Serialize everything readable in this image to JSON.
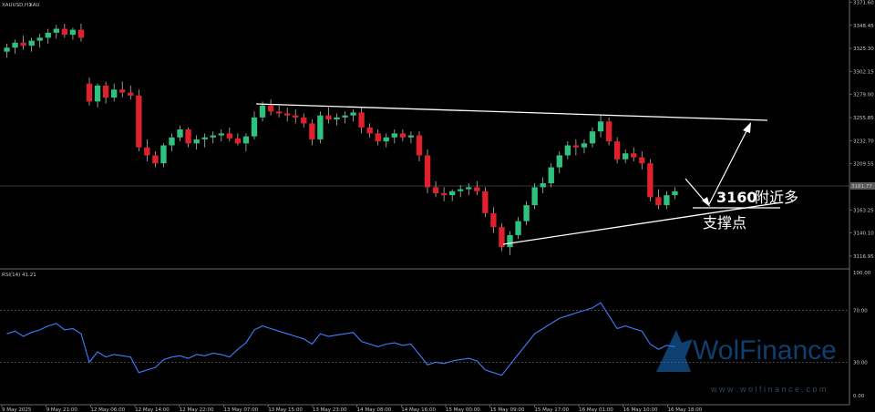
{
  "header": {
    "symbol": "XAUUSD,H1",
    "symbol_short": "XAU"
  },
  "annotation": {
    "line1_number": "3160",
    "line1_text": "附近多",
    "line2": "支撑点"
  },
  "watermark": {
    "brand": "WolFinance",
    "url": "w w w . w o l f i n a n c e . c o m"
  },
  "indicator": {
    "label": "RSI(14) 41.21",
    "levels": [
      70,
      30
    ],
    "scale_top": "100.00",
    "scale_bottom": "0.00"
  },
  "current_price": "3181.77",
  "colors": {
    "bull": "#2ec27e",
    "bear": "#e0202a",
    "rsi": "#3d7fff",
    "trendline": "#ffffff",
    "background": "#000000"
  },
  "chart_data": {
    "type": "candlestick",
    "title": "XAUUSD,H1",
    "ylim": [
      3105,
      3372
    ],
    "y_ticks": [
      "3371.60",
      "3348.45",
      "3325.30",
      "3302.15",
      "3279.00",
      "3255.85",
      "3232.70",
      "3209.55",
      "3186.40",
      "3163.25",
      "3140.10",
      "3116.95"
    ],
    "x_ticks": [
      "9 May 2025",
      "9 May 21:00",
      "12 May 06:00",
      "12 May 14:00",
      "12 May 22:00",
      "13 May 07:00",
      "13 May 15:00",
      "13 May 23:00",
      "14 May 08:00",
      "14 May 16:00",
      "15 May 00:00",
      "15 May 09:00",
      "15 May 17:00",
      "16 May 01:00",
      "16 May 10:00",
      "16 May 18:00"
    ],
    "ohlc": [
      [
        3322,
        3330,
        3316,
        3326
      ],
      [
        3326,
        3334,
        3320,
        3331
      ],
      [
        3331,
        3338,
        3324,
        3328
      ],
      [
        3328,
        3336,
        3322,
        3333
      ],
      [
        3333,
        3340,
        3326,
        3336
      ],
      [
        3336,
        3345,
        3330,
        3341
      ],
      [
        3341,
        3349,
        3335,
        3345
      ],
      [
        3345,
        3350,
        3336,
        3339
      ],
      [
        3339,
        3346,
        3334,
        3344
      ],
      [
        3344,
        3350,
        3332,
        3336
      ],
      [
        3290,
        3296,
        3268,
        3272
      ],
      [
        3272,
        3290,
        3266,
        3288
      ],
      [
        3288,
        3292,
        3270,
        3276
      ],
      [
        3276,
        3290,
        3272,
        3284
      ],
      [
        3284,
        3292,
        3276,
        3281
      ],
      [
        3281,
        3288,
        3274,
        3278
      ],
      [
        3278,
        3284,
        3222,
        3226
      ],
      [
        3226,
        3234,
        3212,
        3218
      ],
      [
        3218,
        3222,
        3206,
        3210
      ],
      [
        3210,
        3230,
        3206,
        3228
      ],
      [
        3228,
        3240,
        3222,
        3236
      ],
      [
        3236,
        3248,
        3232,
        3244
      ],
      [
        3244,
        3246,
        3226,
        3230
      ],
      [
        3230,
        3238,
        3224,
        3234
      ],
      [
        3234,
        3240,
        3226,
        3236
      ],
      [
        3236,
        3242,
        3230,
        3238
      ],
      [
        3238,
        3244,
        3232,
        3240
      ],
      [
        3240,
        3246,
        3232,
        3235
      ],
      [
        3235,
        3240,
        3228,
        3230
      ],
      [
        3230,
        3240,
        3222,
        3237
      ],
      [
        3237,
        3262,
        3234,
        3256
      ],
      [
        3256,
        3272,
        3252,
        3268
      ],
      [
        3268,
        3274,
        3258,
        3262
      ],
      [
        3262,
        3268,
        3256,
        3260
      ],
      [
        3260,
        3266,
        3252,
        3258
      ],
      [
        3258,
        3264,
        3250,
        3256
      ],
      [
        3256,
        3260,
        3246,
        3250
      ],
      [
        3250,
        3254,
        3228,
        3234
      ],
      [
        3234,
        3262,
        3230,
        3258
      ],
      [
        3258,
        3266,
        3250,
        3254
      ],
      [
        3254,
        3260,
        3248,
        3256
      ],
      [
        3256,
        3262,
        3250,
        3258
      ],
      [
        3258,
        3264,
        3252,
        3261
      ],
      [
        3261,
        3266,
        3240,
        3246
      ],
      [
        3246,
        3250,
        3236,
        3240
      ],
      [
        3240,
        3244,
        3228,
        3232
      ],
      [
        3232,
        3240,
        3226,
        3236
      ],
      [
        3236,
        3244,
        3230,
        3240
      ],
      [
        3240,
        3244,
        3232,
        3236
      ],
      [
        3236,
        3242,
        3230,
        3238
      ],
      [
        3238,
        3242,
        3212,
        3218
      ],
      [
        3218,
        3224,
        3180,
        3186
      ],
      [
        3186,
        3192,
        3176,
        3180
      ],
      [
        3180,
        3186,
        3172,
        3178
      ],
      [
        3178,
        3184,
        3172,
        3182
      ],
      [
        3182,
        3188,
        3176,
        3184
      ],
      [
        3184,
        3190,
        3178,
        3186
      ],
      [
        3186,
        3192,
        3178,
        3182
      ],
      [
        3182,
        3186,
        3156,
        3160
      ],
      [
        3160,
        3166,
        3140,
        3146
      ],
      [
        3146,
        3150,
        3122,
        3126
      ],
      [
        3126,
        3142,
        3118,
        3138
      ],
      [
        3138,
        3156,
        3134,
        3152
      ],
      [
        3152,
        3172,
        3148,
        3168
      ],
      [
        3168,
        3190,
        3164,
        3186
      ],
      [
        3186,
        3196,
        3180,
        3190
      ],
      [
        3190,
        3210,
        3186,
        3206
      ],
      [
        3206,
        3222,
        3200,
        3218
      ],
      [
        3218,
        3232,
        3214,
        3228
      ],
      [
        3228,
        3234,
        3218,
        3226
      ],
      [
        3226,
        3234,
        3220,
        3230
      ],
      [
        3230,
        3246,
        3226,
        3242
      ],
      [
        3242,
        3258,
        3236,
        3252
      ],
      [
        3252,
        3256,
        3228,
        3232
      ],
      [
        3232,
        3236,
        3210,
        3214
      ],
      [
        3214,
        3224,
        3210,
        3220
      ],
      [
        3220,
        3226,
        3212,
        3216
      ],
      [
        3216,
        3222,
        3204,
        3210
      ],
      [
        3210,
        3214,
        3172,
        3176
      ],
      [
        3176,
        3184,
        3164,
        3168
      ],
      [
        3168,
        3182,
        3164,
        3178
      ],
      [
        3178,
        3186,
        3174,
        3182
      ]
    ],
    "rsi": [
      52,
      54,
      50,
      53,
      55,
      58,
      60,
      55,
      56,
      52,
      30,
      38,
      34,
      36,
      35,
      34,
      22,
      24,
      26,
      32,
      34,
      35,
      33,
      36,
      35,
      37,
      36,
      34,
      40,
      45,
      55,
      58,
      56,
      54,
      52,
      50,
      48,
      44,
      52,
      50,
      51,
      52,
      53,
      46,
      44,
      42,
      44,
      45,
      43,
      44,
      36,
      28,
      30,
      29,
      31,
      32,
      33,
      31,
      24,
      22,
      20,
      28,
      36,
      44,
      52,
      56,
      60,
      64,
      66,
      68,
      70,
      72,
      76,
      66,
      56,
      58,
      56,
      54,
      44,
      40,
      43,
      42
    ]
  }
}
